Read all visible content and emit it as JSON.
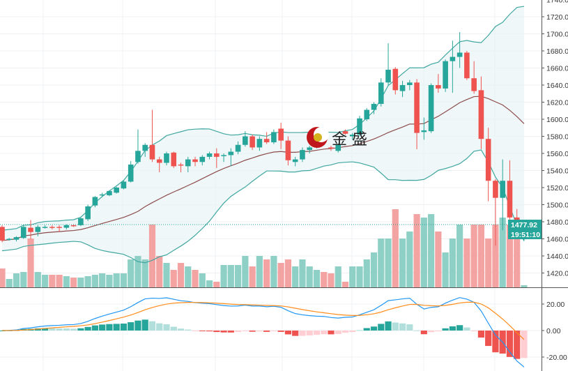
{
  "chart_data": {
    "type": "candlestick",
    "title": "",
    "colors": {
      "up": "#26a69a",
      "down": "#ef5350",
      "up_volume": "#8fd0c6",
      "down_volume": "#f4a3a3",
      "bb_band": "#3fa7a0",
      "bb_mid": "#8d4b4b",
      "macd": "#2196f3",
      "signal": "#ff8c1a"
    },
    "price_axis": {
      "ticks": [
        "1740.00",
        "1720.00",
        "1700.00",
        "1680.00",
        "1660.00",
        "1640.00",
        "1620.00",
        "1600.00",
        "1580.00",
        "1560.00",
        "1540.00",
        "1520.00",
        "1500.00",
        "1480.00",
        "1460.00",
        "1440.00",
        "1420.00"
      ],
      "range": [
        1420,
        1740
      ]
    },
    "macd_axis": {
      "ticks": [
        "20.00",
        "0.00",
        "-20.00"
      ]
    },
    "last_price": "1477.92",
    "countdown": "19:51:10",
    "indicators": [
      "Bollinger Bands (20,2)",
      "Volume",
      "MACD (12,26,9)"
    ],
    "ohlc": [
      [
        1474,
        1476,
        1456,
        1458
      ],
      [
        1459,
        1461,
        1458,
        1460
      ],
      [
        1459,
        1463,
        1457,
        1462
      ],
      [
        1461,
        1476,
        1460,
        1474
      ],
      [
        1473,
        1482,
        1460,
        1468
      ],
      [
        1468,
        1476,
        1463,
        1474
      ],
      [
        1473,
        1476,
        1472,
        1474
      ],
      [
        1474,
        1476,
        1471,
        1473
      ],
      [
        1474,
        1476,
        1468,
        1473
      ],
      [
        1473,
        1477,
        1471,
        1476
      ],
      [
        1476,
        1477,
        1474,
        1475
      ],
      [
        1476,
        1485,
        1475,
        1484
      ],
      [
        1483,
        1500,
        1481,
        1498
      ],
      [
        1499,
        1510,
        1497,
        1509
      ],
      [
        1511,
        1514,
        1509,
        1512
      ],
      [
        1511,
        1517,
        1510,
        1516
      ],
      [
        1514,
        1521,
        1513,
        1520
      ],
      [
        1519,
        1528,
        1518,
        1527
      ],
      [
        1527,
        1551,
        1526,
        1547
      ],
      [
        1550,
        1588,
        1548,
        1563
      ],
      [
        1563,
        1572,
        1556,
        1570
      ],
      [
        1570,
        1611,
        1550,
        1553
      ],
      [
        1553,
        1556,
        1538,
        1549
      ],
      [
        1549,
        1562,
        1546,
        1560
      ],
      [
        1561,
        1562,
        1543,
        1545
      ],
      [
        1547,
        1549,
        1538,
        1546
      ],
      [
        1545,
        1556,
        1538,
        1553
      ],
      [
        1553,
        1556,
        1545,
        1550
      ],
      [
        1550,
        1558,
        1546,
        1556
      ],
      [
        1556,
        1562,
        1553,
        1560
      ],
      [
        1560,
        1566,
        1543,
        1556
      ],
      [
        1557,
        1560,
        1550,
        1558
      ],
      [
        1558,
        1566,
        1545,
        1562
      ],
      [
        1562,
        1574,
        1559,
        1570
      ],
      [
        1570,
        1586,
        1568,
        1580
      ],
      [
        1580,
        1582,
        1564,
        1567
      ],
      [
        1567,
        1580,
        1563,
        1577
      ],
      [
        1577,
        1585,
        1571,
        1573
      ],
      [
        1573,
        1588,
        1571,
        1585
      ],
      [
        1589,
        1596,
        1565,
        1575
      ],
      [
        1575,
        1580,
        1546,
        1552
      ],
      [
        1550,
        1556,
        1545,
        1553
      ],
      [
        1553,
        1567,
        1550,
        1564
      ],
      [
        1564,
        1569,
        1560,
        1567
      ],
      [
        1569,
        1572,
        1566,
        1570
      ],
      [
        1576,
        1578,
        1570,
        1573
      ],
      [
        1567,
        1569,
        1563,
        1566
      ],
      [
        1563,
        1572,
        1561,
        1570
      ],
      [
        1586,
        1588,
        1582,
        1583
      ],
      [
        1580,
        1584,
        1576,
        1582
      ],
      [
        1582,
        1604,
        1580,
        1601
      ],
      [
        1600,
        1613,
        1598,
        1611
      ],
      [
        1611,
        1620,
        1606,
        1618
      ],
      [
        1618,
        1648,
        1615,
        1643
      ],
      [
        1643,
        1689,
        1640,
        1658
      ],
      [
        1659,
        1661,
        1629,
        1634
      ],
      [
        1633,
        1645,
        1626,
        1640
      ],
      [
        1640,
        1646,
        1634,
        1643
      ],
      [
        1643,
        1647,
        1565,
        1584
      ],
      [
        1585,
        1602,
        1576,
        1587
      ],
      [
        1586,
        1642,
        1584,
        1640
      ],
      [
        1640,
        1653,
        1631,
        1636
      ],
      [
        1636,
        1670,
        1632,
        1668
      ],
      [
        1668,
        1692,
        1631,
        1673
      ],
      [
        1673,
        1702,
        1660,
        1678
      ],
      [
        1678,
        1680,
        1646,
        1648
      ],
      [
        1648,
        1668,
        1630,
        1633
      ],
      [
        1634,
        1650,
        1565,
        1577
      ],
      [
        1577,
        1590,
        1504,
        1528
      ],
      [
        1528,
        1530,
        1452,
        1508
      ],
      [
        1508,
        1553,
        1470,
        1528
      ],
      [
        1528,
        1552,
        1465,
        1485
      ],
      [
        1485,
        1495,
        1460,
        1471
      ],
      [
        1471,
        1479,
        1458,
        1477.92
      ]
    ],
    "volume": [
      27,
      12,
      20,
      22,
      70,
      22,
      18,
      18,
      18,
      16,
      14,
      14,
      16,
      18,
      20,
      18,
      20,
      20,
      40,
      45,
      40,
      90,
      45,
      35,
      25,
      35,
      30,
      25,
      20,
      10,
      8,
      32,
      32,
      32,
      45,
      30,
      45,
      40,
      45,
      35,
      40,
      30,
      40,
      30,
      25,
      22,
      20,
      30,
      8,
      30,
      30,
      40,
      50,
      70,
      70,
      112,
      70,
      80,
      105,
      100,
      105,
      80,
      50,
      70,
      90,
      70,
      90,
      90,
      70,
      90,
      100,
      90,
      70,
      3
    ]
  },
  "watermark": {
    "text": "金 盛"
  }
}
